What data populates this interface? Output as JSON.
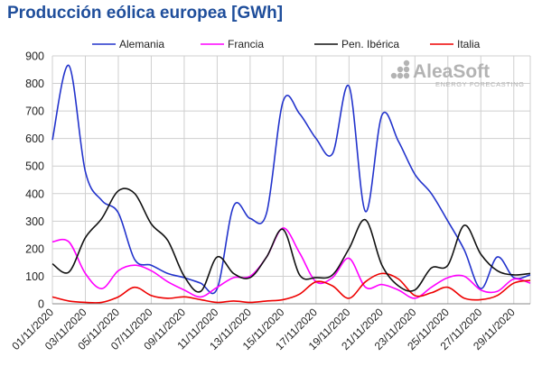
{
  "chart_data": {
    "type": "line",
    "title": "Producción eólica europea [GWh]",
    "ylim": [
      0,
      900
    ],
    "yticks": [
      0,
      100,
      200,
      300,
      400,
      500,
      600,
      700,
      800,
      900
    ],
    "xlim": [
      0,
      29
    ],
    "x_tick_labels": [
      "01/11/2020",
      "03/11/2020",
      "05/11/2020",
      "07/11/2020",
      "09/11/2020",
      "11/11/2020",
      "13/11/2020",
      "15/11/2020",
      "17/11/2020",
      "19/11/2020",
      "21/11/2020",
      "23/11/2020",
      "25/11/2020",
      "27/11/2020",
      "29/11/2020"
    ],
    "categories": [
      "01/11/2020",
      "02/11/2020",
      "03/11/2020",
      "04/11/2020",
      "05/11/2020",
      "06/11/2020",
      "07/11/2020",
      "08/11/2020",
      "09/11/2020",
      "10/11/2020",
      "11/11/2020",
      "12/11/2020",
      "13/11/2020",
      "14/11/2020",
      "15/11/2020",
      "16/11/2020",
      "17/11/2020",
      "18/11/2020",
      "19/11/2020",
      "20/11/2020",
      "21/11/2020",
      "22/11/2020",
      "23/11/2020",
      "24/11/2020",
      "25/11/2020",
      "26/11/2020",
      "27/11/2020",
      "28/11/2020",
      "29/11/2020",
      "30/11/2020"
    ],
    "grid": true,
    "legend_position": "top",
    "series": [
      {
        "name": "Alemania",
        "color": "#2233cc",
        "values": [
          595,
          865,
          480,
          375,
          330,
          160,
          140,
          110,
          95,
          75,
          55,
          355,
          310,
          330,
          735,
          690,
          600,
          545,
          790,
          335,
          685,
          590,
          470,
          400,
          300,
          195,
          55,
          170,
          95,
          105
        ]
      },
      {
        "name": "Francia",
        "color": "#ff00ff",
        "values": [
          225,
          225,
          110,
          55,
          120,
          140,
          120,
          80,
          50,
          25,
          60,
          95,
          100,
          170,
          275,
          185,
          80,
          95,
          165,
          60,
          70,
          50,
          20,
          60,
          95,
          100,
          50,
          45,
          90,
          75
        ]
      },
      {
        "name": "Pen. Ibérica",
        "color": "#111111",
        "values": [
          145,
          115,
          240,
          310,
          410,
          400,
          290,
          230,
          100,
          45,
          170,
          110,
          95,
          170,
          270,
          105,
          95,
          105,
          200,
          305,
          140,
          65,
          50,
          130,
          140,
          285,
          180,
          120,
          105,
          110
        ]
      },
      {
        "name": "Italia",
        "color": "#ee0000",
        "values": [
          25,
          10,
          5,
          5,
          25,
          60,
          30,
          20,
          25,
          15,
          5,
          10,
          5,
          10,
          15,
          35,
          80,
          65,
          20,
          80,
          110,
          90,
          30,
          40,
          60,
          20,
          15,
          30,
          75,
          85
        ]
      }
    ]
  },
  "watermark": {
    "brand": "AleaSoft",
    "tagline": "ENERGY FORECASTING"
  }
}
